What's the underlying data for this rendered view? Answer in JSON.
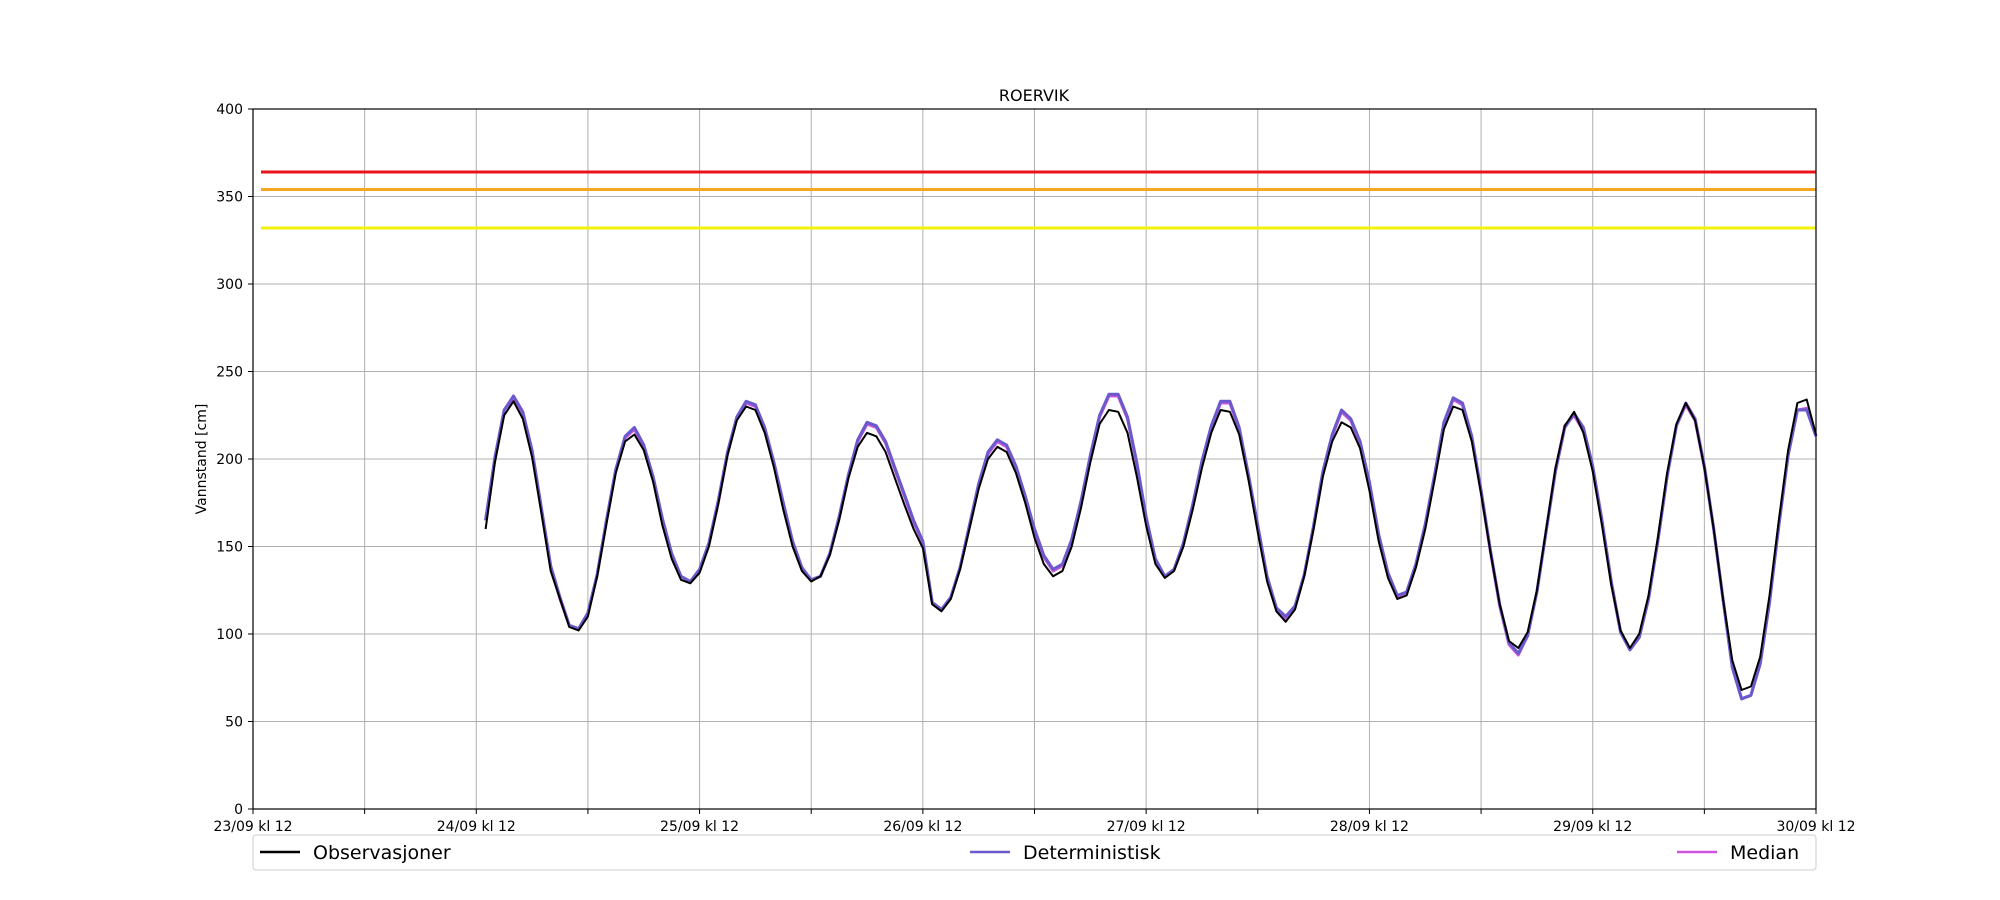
{
  "chart_data": {
    "type": "line",
    "title": "ROERVIK",
    "xlabel": "",
    "ylabel": "Vannstand [cm]",
    "ylim": [
      0,
      400
    ],
    "yticks": [
      0,
      50,
      100,
      150,
      200,
      250,
      300,
      350,
      400
    ],
    "xlim_hours": [
      0,
      168
    ],
    "xtick_labels": [
      "23/09 kl 12",
      "24/09 kl 12",
      "25/09 kl 12",
      "26/09 kl 12",
      "27/09 kl 12",
      "28/09 kl 12",
      "29/09 kl 12",
      "30/09 kl 12"
    ],
    "grid": true,
    "legend": {
      "position": "bottom",
      "items": [
        "Observasjoner",
        "Deterministisk",
        "Median"
      ]
    },
    "thresholds": [
      {
        "value": 364,
        "color": "#e8141c"
      },
      {
        "value": 354,
        "color": "#f5a623"
      },
      {
        "value": 332,
        "color": "#f2f20a"
      }
    ],
    "series": [
      {
        "name": "Observasjoner",
        "color": "#000000",
        "x": [
          25,
          26,
          27,
          28,
          29,
          30,
          31,
          32,
          33,
          34,
          35,
          36,
          37,
          38,
          39,
          40,
          41,
          42,
          43,
          44,
          45,
          46,
          47,
          48,
          49,
          50,
          51,
          52,
          53,
          54,
          55,
          56,
          57,
          58,
          59,
          60,
          61,
          62,
          63,
          64,
          65,
          66,
          67,
          68,
          69,
          70,
          71,
          72,
          73,
          74,
          75,
          76,
          77,
          78,
          79,
          80,
          81,
          82,
          83,
          84,
          85,
          86,
          87,
          88,
          89,
          90,
          91,
          92,
          93,
          94,
          95,
          96,
          97,
          98,
          99,
          100,
          101,
          102,
          103,
          104,
          105,
          106,
          107,
          108,
          109,
          110,
          111,
          112,
          113,
          114,
          115,
          116,
          117,
          118,
          119,
          120,
          121,
          122,
          123,
          124,
          125,
          126,
          127,
          128,
          129,
          130,
          131,
          132,
          133,
          134,
          135,
          136,
          137,
          138,
          139,
          140,
          141,
          142,
          143,
          144,
          145,
          146,
          147,
          148,
          149,
          150,
          151,
          152,
          153,
          154,
          155,
          156,
          157,
          158,
          159,
          160,
          161,
          162,
          163,
          164,
          165,
          166,
          167,
          168
        ],
        "y": [
          160,
          198,
          225,
          233,
          223,
          201,
          169,
          136,
          120,
          104,
          102,
          110,
          133,
          163,
          192,
          210,
          214,
          205,
          187,
          162,
          143,
          131,
          129,
          135,
          150,
          174,
          202,
          222,
          230,
          228,
          215,
          195,
          171,
          150,
          136,
          130,
          133,
          145,
          165,
          189,
          207,
          215,
          213,
          204,
          189,
          174,
          160,
          149,
          117,
          113,
          120,
          137,
          160,
          183,
          200,
          207,
          204,
          192,
          175,
          155,
          140,
          133,
          136,
          150,
          172,
          198,
          220,
          228,
          227,
          215,
          190,
          162,
          140,
          132,
          136,
          150,
          171,
          195,
          215,
          228,
          227,
          214,
          188,
          158,
          130,
          113,
          107,
          114,
          133,
          160,
          190,
          210,
          221,
          218,
          206,
          182,
          153,
          132,
          120,
          122,
          138,
          160,
          188,
          217,
          230,
          228,
          210,
          180,
          147,
          117,
          96,
          92,
          101,
          125,
          160,
          195,
          219,
          227,
          215,
          193,
          162,
          128,
          102,
          92,
          100,
          122,
          155,
          192,
          220,
          232,
          222,
          195,
          160,
          120,
          85,
          68,
          70,
          87,
          122,
          165,
          205,
          232,
          234,
          214
        ]
      },
      {
        "name": "Deterministisk",
        "color": "#6a5acd",
        "x": [
          25,
          26,
          27,
          28,
          29,
          30,
          31,
          32,
          33,
          34,
          35,
          36,
          37,
          38,
          39,
          40,
          41,
          42,
          43,
          44,
          45,
          46,
          47,
          48,
          49,
          50,
          51,
          52,
          53,
          54,
          55,
          56,
          57,
          58,
          59,
          60,
          61,
          62,
          63,
          64,
          65,
          66,
          67,
          68,
          69,
          70,
          71,
          72,
          73,
          74,
          75,
          76,
          77,
          78,
          79,
          80,
          81,
          82,
          83,
          84,
          85,
          86,
          87,
          88,
          89,
          90,
          91,
          92,
          93,
          94,
          95,
          96,
          97,
          98,
          99,
          100,
          101,
          102,
          103,
          104,
          105,
          106,
          107,
          108,
          109,
          110,
          111,
          112,
          113,
          114,
          115,
          116,
          117,
          118,
          119,
          120,
          121,
          122,
          123,
          124,
          125,
          126,
          127,
          128,
          129,
          130,
          131,
          132,
          133,
          134,
          135,
          136,
          137,
          138,
          139,
          140,
          141,
          142,
          143,
          144,
          145,
          146,
          147,
          148,
          149,
          150,
          151,
          152,
          153,
          154,
          155,
          156,
          157,
          158,
          159,
          160,
          161,
          162,
          163,
          164,
          165,
          166,
          167,
          168
        ],
        "y": [
          165,
          201,
          228,
          236,
          227,
          205,
          172,
          139,
          121,
          105,
          103,
          112,
          134,
          165,
          194,
          213,
          218,
          208,
          190,
          166,
          146,
          133,
          130,
          137,
          152,
          176,
          204,
          224,
          233,
          231,
          218,
          198,
          175,
          153,
          138,
          131,
          133,
          146,
          167,
          191,
          211,
          221,
          219,
          210,
          195,
          180,
          165,
          153,
          118,
          114,
          121,
          138,
          162,
          186,
          204,
          211,
          208,
          196,
          179,
          160,
          145,
          137,
          140,
          154,
          176,
          202,
          225,
          237,
          237,
          224,
          198,
          167,
          143,
          133,
          137,
          152,
          174,
          199,
          219,
          233,
          233,
          218,
          191,
          162,
          133,
          115,
          110,
          116,
          134,
          162,
          193,
          214,
          228,
          223,
          210,
          187,
          157,
          135,
          122,
          124,
          140,
          163,
          191,
          221,
          235,
          232,
          213,
          182,
          148,
          117,
          95,
          89,
          99,
          124,
          159,
          193,
          218,
          226,
          218,
          196,
          165,
          130,
          101,
          91,
          98,
          120,
          153,
          190,
          219,
          232,
          223,
          196,
          160,
          120,
          81,
          63,
          65,
          83,
          118,
          162,
          202,
          228,
          228,
          213
        ]
      },
      {
        "name": "Median",
        "color": "#cc55dd",
        "x": [
          25,
          26,
          27,
          28,
          29,
          30,
          31,
          32,
          33,
          34,
          35,
          36,
          37,
          38,
          39,
          40,
          41,
          42,
          43,
          44,
          45,
          46,
          47,
          48,
          49,
          50,
          51,
          52,
          53,
          54,
          55,
          56,
          57,
          58,
          59,
          60,
          61,
          62,
          63,
          64,
          65,
          66,
          67,
          68,
          69,
          70,
          71,
          72,
          73,
          74,
          75,
          76,
          77,
          78,
          79,
          80,
          81,
          82,
          83,
          84,
          85,
          86,
          87,
          88,
          89,
          90,
          91,
          92,
          93,
          94,
          95,
          96,
          97,
          98,
          99,
          100,
          101,
          102,
          103,
          104,
          105,
          106,
          107,
          108,
          109,
          110,
          111,
          112,
          113,
          114,
          115,
          116,
          117,
          118,
          119,
          120,
          121,
          122,
          123,
          124,
          125,
          126,
          127,
          128,
          129,
          130,
          131,
          132,
          133,
          134,
          135,
          136,
          137,
          138,
          139,
          140,
          141,
          142,
          143,
          144,
          145,
          146,
          147,
          148,
          149,
          150,
          151,
          152,
          153,
          154,
          155,
          156,
          157,
          158,
          159,
          160,
          161,
          162,
          163,
          164,
          165,
          166,
          167,
          168
        ],
        "y": [
          165,
          200,
          228,
          235,
          226,
          204,
          171,
          138,
          120,
          105,
          103,
          112,
          134,
          165,
          194,
          212,
          217,
          207,
          189,
          165,
          145,
          133,
          130,
          136,
          151,
          175,
          203,
          223,
          232,
          230,
          217,
          197,
          174,
          152,
          137,
          131,
          133,
          146,
          166,
          190,
          210,
          220,
          218,
          209,
          194,
          179,
          164,
          152,
          118,
          114,
          121,
          138,
          161,
          185,
          203,
          210,
          207,
          195,
          178,
          159,
          144,
          136,
          139,
          153,
          175,
          201,
          224,
          236,
          236,
          223,
          197,
          166,
          142,
          133,
          137,
          151,
          173,
          198,
          218,
          232,
          232,
          217,
          190,
          161,
          132,
          114,
          109,
          115,
          134,
          161,
          192,
          213,
          227,
          222,
          209,
          186,
          156,
          134,
          121,
          123,
          139,
          162,
          190,
          220,
          234,
          231,
          212,
          181,
          147,
          116,
          94,
          88,
          99,
          124,
          159,
          194,
          219,
          225,
          216,
          195,
          164,
          129,
          101,
          91,
          98,
          120,
          153,
          190,
          219,
          231,
          222,
          195,
          160,
          120,
          81,
          63,
          65,
          83,
          118,
          162,
          202,
          228,
          229,
          213
        ]
      }
    ]
  }
}
